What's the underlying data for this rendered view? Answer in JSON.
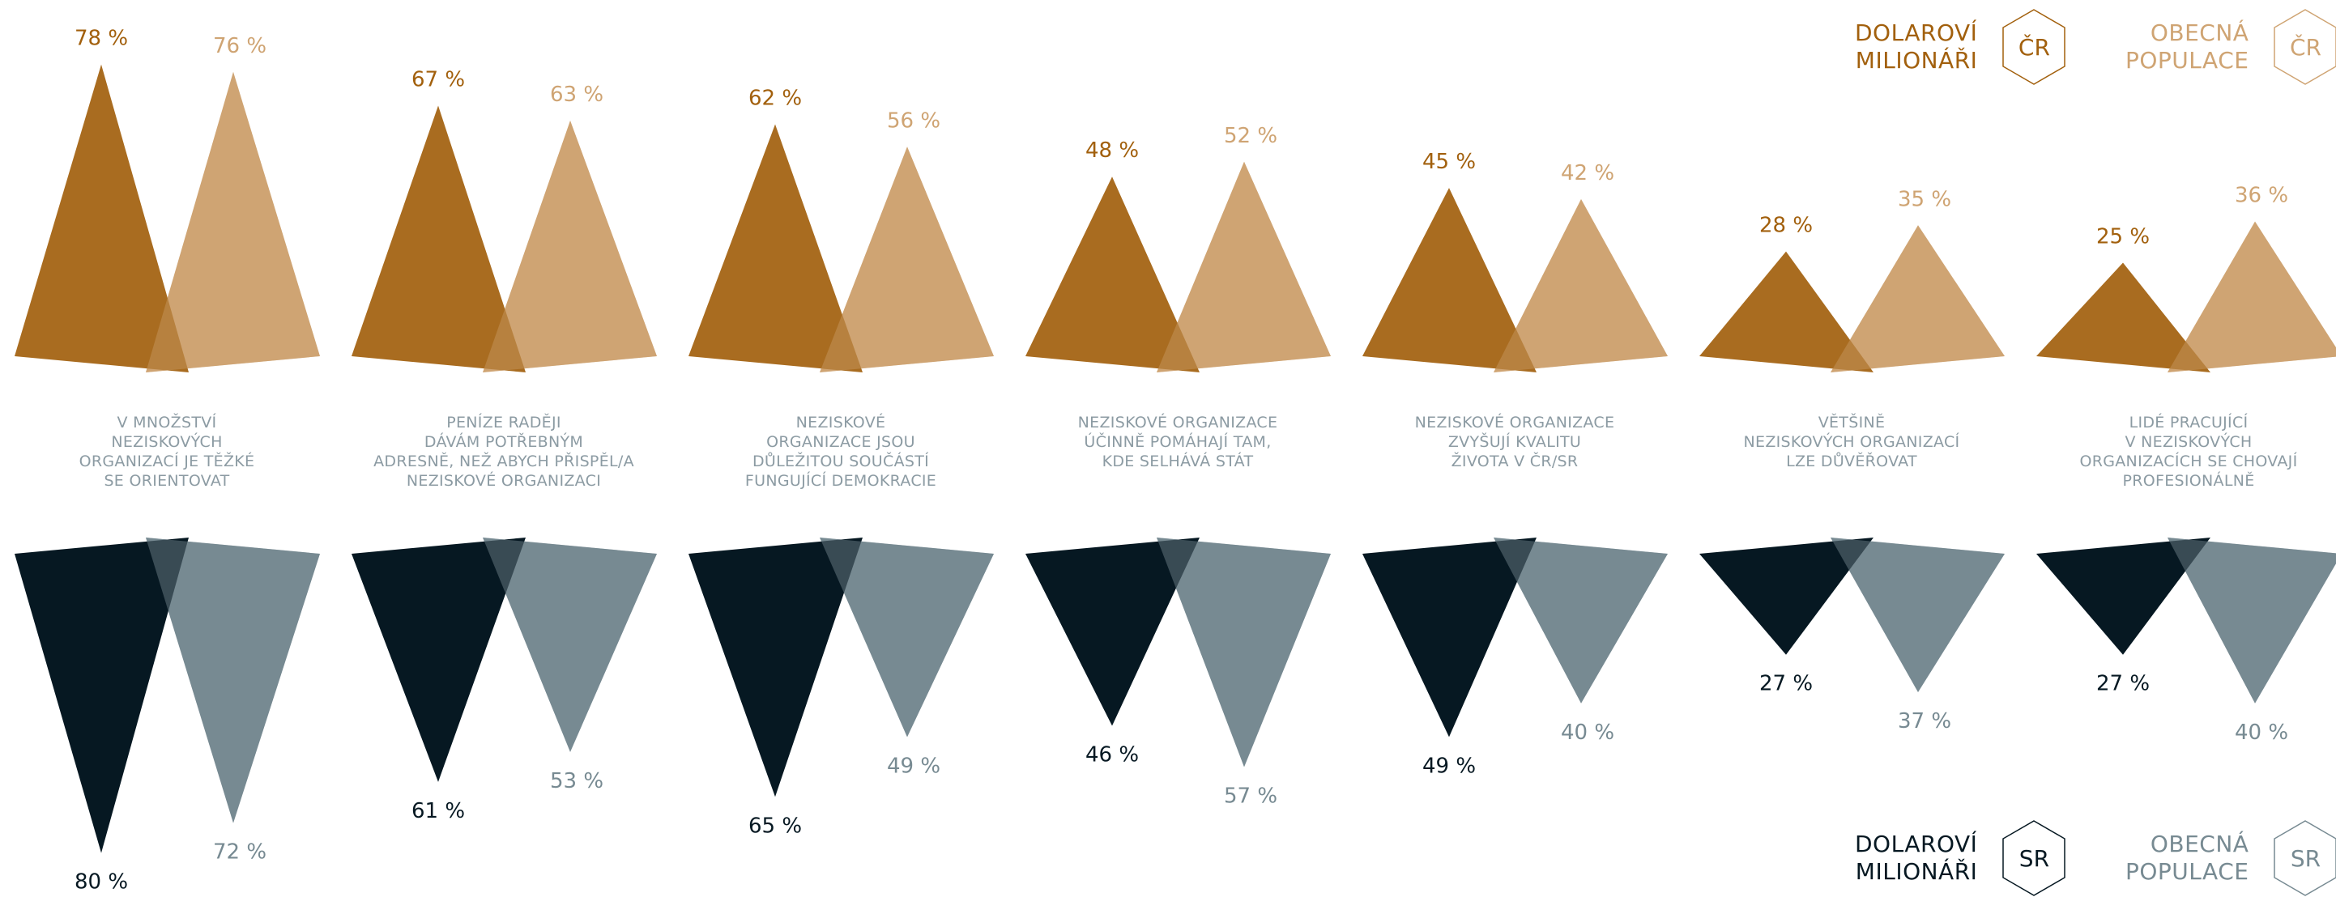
{
  "chart_data": {
    "type": "bar",
    "title": "",
    "categories": [
      "V MNOŽSTVÍ NEZISKOVÝCH ORGANIZACÍ JE TĚŽKÉ SE ORIENTOVAT",
      "PENÍZE RADĚJI DÁVÁM POTŘEBNÝM ADRESNĚ, NEŽ ABYCH PŘISPĚL/A NEZISKOVÉ ORGANIZACI",
      "NEZISKOVÉ ORGANIZACE JSOU DŮLEŽITOU SOUČÁSTÍ FUNGUJÍCÍ DEMOKRACIE",
      "NEZISKOVÉ ORGANIZACE ÚČINNĚ POMÁHAJÍ TAM, KDE SELHÁVÁ STÁT",
      "NEZISKOVÉ ORGANIZACE ZVYŠUJÍ KVALITU ŽIVOTA V ČR/SR",
      "VĚTŠINĚ NEZISKOVÝCH ORGANIZACÍ LZE DŮVĚŘOVAT",
      "LIDÉ PRACUJÍCÍ V NEZISKOVÝCH ORGANIZACÍCH SE CHOVAJÍ PROFESIONÁLNĚ"
    ],
    "category_lines": [
      [
        "V MNOŽSTVÍ",
        "NEZISKOVÝCH",
        "ORGANIZACÍ JE TĚŽKÉ",
        "SE ORIENTOVAT"
      ],
      [
        "PENÍZE RADĚJI",
        "DÁVÁM POTŘEBNÝM",
        "ADRESNĚ, NEŽ ABYCH PŘISPĚL/A",
        "NEZISKOVÉ ORGANIZACI"
      ],
      [
        "NEZISKOVÉ",
        "ORGANIZACE JSOU",
        "DŮLEŽITOU SOUČÁSTÍ",
        "FUNGUJÍCÍ DEMOKRACIE"
      ],
      [
        "NEZISKOVÉ ORGANIZACE",
        "ÚČINNĚ POMÁHAJÍ TAM,",
        "KDE SELHÁVÁ STÁT"
      ],
      [
        "NEZISKOVÉ ORGANIZACE",
        "ZVYŠUJÍ KVALITU",
        "ŽIVOTA V ČR/SR"
      ],
      [
        "VĚTŠINĚ",
        "NEZISKOVÝCH ORGANIZACÍ",
        "LZE DŮVĚŘOVAT"
      ],
      [
        "LIDÉ PRACUJÍCÍ",
        "V NEZISKOVÝCH",
        "ORGANIZACÍCH SE CHOVAJÍ",
        "PROFESIONÁLNĚ"
      ]
    ],
    "unit": "%",
    "ylim": [
      0,
      100
    ],
    "series": [
      {
        "name": "DOLAROVÍ MILIONÁŘI ČR",
        "color": "#A2600D",
        "direction": "up",
        "values": [
          78,
          67,
          62,
          48,
          45,
          28,
          25
        ]
      },
      {
        "name": "OBECNÁ POPULACE ČR",
        "color": "#CFA473",
        "direction": "up",
        "values": [
          76,
          63,
          56,
          52,
          42,
          35,
          36
        ]
      },
      {
        "name": "DOLAROVÍ MILIONÁŘI SR",
        "color": "#061822",
        "direction": "down",
        "values": [
          80,
          61,
          65,
          46,
          49,
          27,
          27
        ]
      },
      {
        "name": "OBECNÁ POPULACE SR",
        "color": "#778A92",
        "direction": "down",
        "values": [
          72,
          53,
          49,
          57,
          40,
          37,
          40
        ]
      }
    ]
  },
  "legend": {
    "cz": {
      "millionaires": {
        "line1": "DOLAROVÍ",
        "line2": "MILIONÁŘI",
        "badge": "ČR",
        "color": "#A2600D"
      },
      "population": {
        "line1": "OBECNÁ",
        "line2": "POPULACE",
        "badge": "ČR",
        "color": "#CFA473"
      }
    },
    "sk": {
      "millionaires": {
        "line1": "DOLAROVÍ",
        "line2": "MILIONÁŘI",
        "badge": "SR",
        "color": "#061822"
      },
      "population": {
        "line1": "OBECNÁ",
        "line2": "POPULACE",
        "badge": "SR",
        "color": "#778A92"
      }
    }
  },
  "label_color": "#8C9BA3"
}
